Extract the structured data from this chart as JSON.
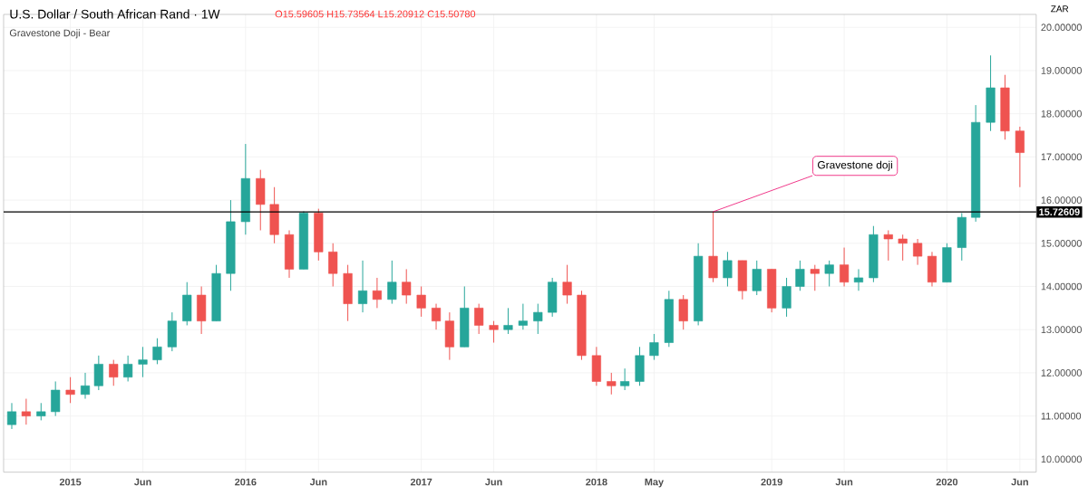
{
  "chart_data": {
    "type": "candlestick",
    "title": "U.S. Dollar / South African Rand · 1W",
    "subtitle": "Gravestone Doji - Bear",
    "annotations": [
      "O15.59605 H15.73564 L15.20912 C15.50780",
      "ZAR",
      {
        "text": "Gravestone doji",
        "x": "2018-09",
        "y": 15.73
      }
    ],
    "x": [
      "2014-09",
      "2014-10",
      "2014-11",
      "2014-12",
      "2015-01",
      "2015-02",
      "2015-03",
      "2015-04",
      "2015-05",
      "2015-06",
      "2015-07",
      "2015-08",
      "2015-09",
      "2015-10",
      "2015-11",
      "2015-12",
      "2016-01",
      "2016-02",
      "2016-03",
      "2016-04",
      "2016-05",
      "2016-06",
      "2016-07",
      "2016-08",
      "2016-09",
      "2016-10",
      "2016-11",
      "2016-12",
      "2017-01",
      "2017-02",
      "2017-03",
      "2017-04",
      "2017-05",
      "2017-06",
      "2017-07",
      "2017-08",
      "2017-09",
      "2017-10",
      "2017-11",
      "2017-12",
      "2018-01",
      "2018-02",
      "2018-03",
      "2018-04",
      "2018-05",
      "2018-06",
      "2018-07",
      "2018-08",
      "2018-09",
      "2018-10",
      "2018-11",
      "2018-12",
      "2019-01",
      "2019-02",
      "2019-03",
      "2019-04",
      "2019-05",
      "2019-06",
      "2019-07",
      "2019-08",
      "2019-09",
      "2019-10",
      "2019-11",
      "2019-12",
      "2020-01",
      "2020-02",
      "2020-03",
      "2020-04",
      "2020-05",
      "2020-06"
    ],
    "ohlc": [
      [
        10.8,
        11.3,
        10.7,
        11.1
      ],
      [
        11.1,
        11.4,
        10.8,
        11.0
      ],
      [
        11.0,
        11.3,
        10.9,
        11.1
      ],
      [
        11.1,
        11.8,
        11.0,
        11.6
      ],
      [
        11.6,
        11.9,
        11.3,
        11.5
      ],
      [
        11.5,
        12.0,
        11.4,
        11.7
      ],
      [
        11.7,
        12.4,
        11.6,
        12.2
      ],
      [
        12.2,
        12.3,
        11.7,
        11.9
      ],
      [
        11.9,
        12.4,
        11.8,
        12.2
      ],
      [
        12.2,
        12.6,
        11.9,
        12.3
      ],
      [
        12.3,
        12.8,
        12.2,
        12.6
      ],
      [
        12.6,
        13.4,
        12.5,
        13.2
      ],
      [
        13.2,
        14.1,
        13.1,
        13.8
      ],
      [
        13.8,
        14.0,
        12.9,
        13.2
      ],
      [
        13.2,
        14.5,
        13.2,
        14.3
      ],
      [
        14.3,
        16.0,
        13.9,
        15.5
      ],
      [
        15.5,
        17.3,
        15.2,
        16.5
      ],
      [
        16.5,
        16.7,
        15.3,
        15.9
      ],
      [
        15.9,
        16.3,
        15.0,
        15.2
      ],
      [
        15.2,
        15.3,
        14.2,
        14.4
      ],
      [
        14.4,
        15.74,
        14.4,
        15.7
      ],
      [
        15.7,
        15.8,
        14.6,
        14.8
      ],
      [
        14.8,
        15.0,
        14.0,
        14.3
      ],
      [
        14.3,
        14.5,
        13.2,
        13.6
      ],
      [
        13.6,
        14.6,
        13.4,
        13.9
      ],
      [
        13.9,
        14.2,
        13.5,
        13.7
      ],
      [
        13.7,
        14.6,
        13.6,
        14.1
      ],
      [
        14.1,
        14.4,
        13.6,
        13.8
      ],
      [
        13.8,
        14.0,
        13.3,
        13.5
      ],
      [
        13.5,
        13.6,
        13.0,
        13.2
      ],
      [
        13.2,
        13.4,
        12.3,
        12.6
      ],
      [
        12.6,
        14.0,
        12.6,
        13.5
      ],
      [
        13.5,
        13.6,
        12.9,
        13.1
      ],
      [
        13.1,
        13.2,
        12.7,
        13.0
      ],
      [
        13.0,
        13.5,
        12.9,
        13.1
      ],
      [
        13.1,
        13.6,
        13.0,
        13.2
      ],
      [
        13.2,
        13.6,
        12.9,
        13.4
      ],
      [
        13.4,
        14.2,
        13.3,
        14.1
      ],
      [
        14.1,
        14.5,
        13.6,
        13.8
      ],
      [
        13.8,
        13.9,
        12.3,
        12.4
      ],
      [
        12.4,
        12.6,
        11.7,
        11.8
      ],
      [
        11.8,
        12.0,
        11.5,
        11.7
      ],
      [
        11.7,
        12.1,
        11.6,
        11.8
      ],
      [
        11.8,
        12.6,
        11.7,
        12.4
      ],
      [
        12.4,
        12.9,
        12.3,
        12.7
      ],
      [
        12.7,
        13.9,
        12.6,
        13.7
      ],
      [
        13.7,
        13.8,
        13.0,
        13.2
      ],
      [
        13.2,
        15.0,
        13.1,
        14.7
      ],
      [
        14.7,
        15.73,
        14.1,
        14.2
      ],
      [
        14.2,
        14.8,
        14.0,
        14.6
      ],
      [
        14.6,
        14.6,
        13.7,
        13.9
      ],
      [
        13.9,
        14.6,
        13.8,
        14.4
      ],
      [
        14.4,
        14.4,
        13.4,
        13.5
      ],
      [
        13.5,
        14.2,
        13.3,
        14.0
      ],
      [
        14.0,
        14.6,
        13.9,
        14.4
      ],
      [
        14.4,
        14.5,
        13.9,
        14.3
      ],
      [
        14.3,
        14.6,
        14.0,
        14.5
      ],
      [
        14.5,
        14.9,
        14.0,
        14.1
      ],
      [
        14.1,
        14.4,
        13.9,
        14.2
      ],
      [
        14.2,
        15.4,
        14.1,
        15.2
      ],
      [
        15.2,
        15.3,
        14.6,
        15.1
      ],
      [
        15.1,
        15.2,
        14.6,
        15.0
      ],
      [
        15.0,
        15.1,
        14.5,
        14.7
      ],
      [
        14.7,
        14.8,
        14.0,
        14.1
      ],
      [
        14.1,
        15.0,
        14.1,
        14.9
      ],
      [
        14.9,
        15.7,
        14.6,
        15.6
      ],
      [
        15.6,
        18.2,
        15.5,
        17.8
      ],
      [
        17.8,
        19.35,
        17.6,
        18.6
      ],
      [
        18.6,
        18.9,
        17.4,
        17.6
      ],
      [
        17.6,
        17.7,
        16.3,
        17.1
      ]
    ],
    "colors": [
      "#26a69a",
      "#ef5350",
      "#26a69a",
      "#26a69a",
      "#ef5350",
      "#26a69a",
      "#26a69a",
      "#ef5350",
      "#26a69a",
      "#26a69a",
      "#26a69a",
      "#26a69a",
      "#26a69a",
      "#ef5350",
      "#26a69a",
      "#26a69a",
      "#26a69a",
      "#ef5350",
      "#ef5350",
      "#ef5350",
      "#26a69a",
      "#ef5350",
      "#ef5350",
      "#ef5350",
      "#26a69a",
      "#ef5350",
      "#26a69a",
      "#ef5350",
      "#ef5350",
      "#ef5350",
      "#ef5350",
      "#26a69a",
      "#ef5350",
      "#ef5350",
      "#26a69a",
      "#26a69a",
      "#26a69a",
      "#26a69a",
      "#ef5350",
      "#ef5350",
      "#ef5350",
      "#ef5350",
      "#26a69a",
      "#26a69a",
      "#26a69a",
      "#26a69a",
      "#ef5350",
      "#26a69a",
      "#ef5350",
      "#26a69a",
      "#ef5350",
      "#26a69a",
      "#ef5350",
      "#26a69a",
      "#26a69a",
      "#ef5350",
      "#26a69a",
      "#ef5350",
      "#26a69a",
      "#26a69a",
      "#ef5350",
      "#ef5350",
      "#ef5350",
      "#ef5350",
      "#26a69a",
      "#26a69a",
      "#26a69a",
      "#26a69a",
      "#ef5350",
      "#ef5350"
    ],
    "xlim": [
      "2014-08-15",
      "2020-07-05"
    ],
    "xticks": [
      {
        "value": "2015-01-01",
        "label": "2015"
      },
      {
        "value": "2015-06-01",
        "label": "Jun"
      },
      {
        "value": "2016-01-01",
        "label": "2016"
      },
      {
        "value": "2016-06-01",
        "label": "Jun"
      },
      {
        "value": "2017-01-01",
        "label": "2017"
      },
      {
        "value": "2017-06-01",
        "label": "Jun"
      },
      {
        "value": "2018-01-01",
        "label": "2018"
      },
      {
        "value": "2018-05-01",
        "label": "May"
      },
      {
        "value": "2019-01-01",
        "label": "2019"
      },
      {
        "value": "2019-06-01",
        "label": "Jun"
      },
      {
        "value": "2020-01-01",
        "label": "2020"
      },
      {
        "value": "2020-06-01",
        "label": "Jun"
      }
    ],
    "ylim": [
      9.7,
      20.3
    ],
    "yticks": [
      {
        "value": 10,
        "label": "10.00000"
      },
      {
        "value": 11,
        "label": "11.00000"
      },
      {
        "value": 12,
        "label": "12.00000"
      },
      {
        "value": 13,
        "label": "13.00000"
      },
      {
        "value": 14,
        "label": "14.00000"
      },
      {
        "value": 15,
        "label": "15.00000"
      },
      {
        "value": 16,
        "label": "16.00000"
      },
      {
        "value": 17,
        "label": "17.00000"
      },
      {
        "value": 18,
        "label": "18.00000"
      },
      {
        "value": 19,
        "label": "19.00000"
      },
      {
        "value": 20,
        "label": "20.00000"
      }
    ],
    "ref_lines": [
      {
        "axis": "y",
        "value": 15.72609,
        "label": "15.72609",
        "color": "#000000"
      }
    ],
    "grid": true
  }
}
